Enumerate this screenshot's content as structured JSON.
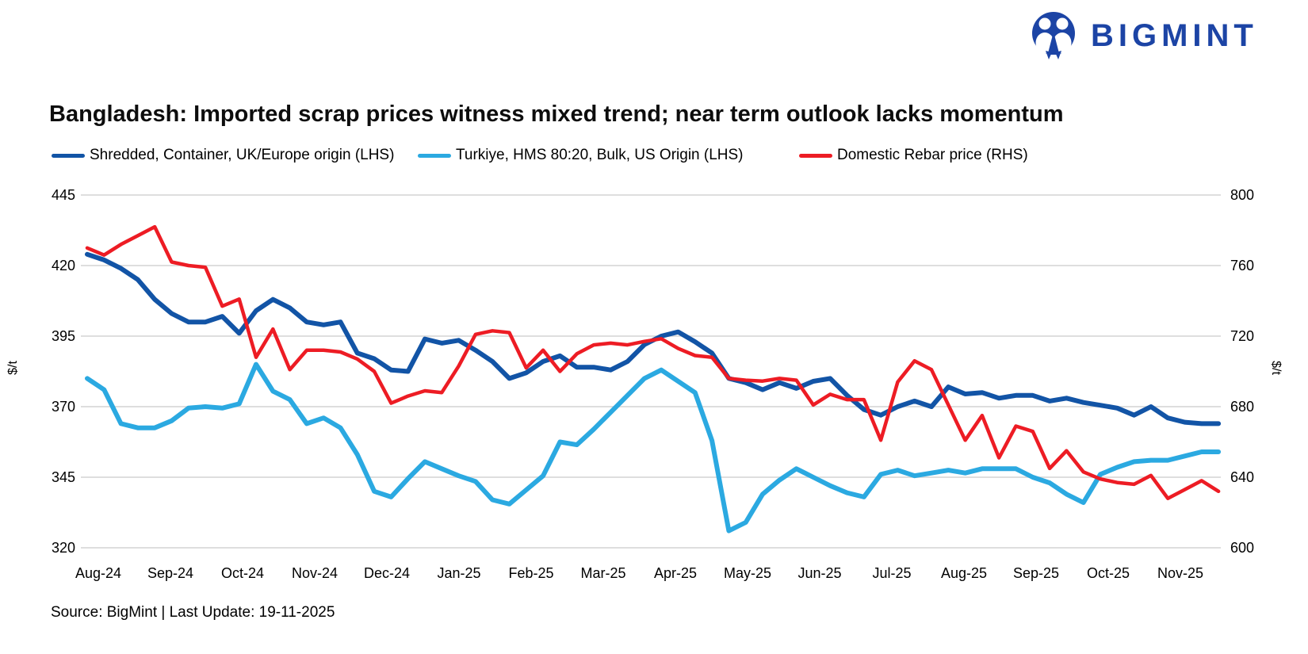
{
  "logo": {
    "text": "BIGMINT",
    "color": "#1c44a5"
  },
  "title": "Bangladesh: Imported scrap prices witness mixed trend; near term outlook lacks momentum",
  "legend": [
    {
      "label": "Shredded, Container, UK/Europe origin (LHS)",
      "color": "#1254a6"
    },
    {
      "label": "Turkiye, HMS 80:20, Bulk, US Origin (LHS)",
      "color": "#2ba9e1"
    },
    {
      "label": "Domestic Rebar price (RHS)",
      "color": "#ed1c24"
    }
  ],
  "axes": {
    "left": {
      "label": "$/t",
      "ticks": [
        445,
        420,
        395,
        370,
        345,
        320
      ]
    },
    "right": {
      "label": "$/t",
      "ticks": [
        800,
        760,
        720,
        680,
        640,
        600
      ]
    },
    "x": {
      "labels": [
        "Aug-24",
        "Sep-24",
        "Oct-24",
        "Nov-24",
        "Dec-24",
        "Jan-25",
        "Feb-25",
        "Mar-25",
        "Apr-25",
        "May-25",
        "Jun-25",
        "Jul-25",
        "Aug-25",
        "Sep-25",
        "Oct-25",
        "Nov-25"
      ]
    }
  },
  "source": "Source: BigMint | Last Update: 19-11-2025",
  "chart_data": {
    "type": "line",
    "frequency": "weekly",
    "categories": [
      "Aug-24",
      "Sep-24",
      "Oct-24",
      "Nov-24",
      "Dec-24",
      "Jan-25",
      "Feb-25",
      "Mar-25",
      "Apr-25",
      "May-25",
      "Jun-25",
      "Jul-25",
      "Aug-25",
      "Sep-25",
      "Oct-25",
      "Nov-25"
    ],
    "left_ylim": [
      320,
      445
    ],
    "right_ylim": [
      600,
      800
    ],
    "grid": true,
    "legend_position": "top",
    "series": [
      {
        "name": "Shredded, Container, UK/Europe origin (LHS)",
        "axis": "LHS",
        "color": "#1254a6",
        "values": [
          424,
          422,
          419,
          415,
          408,
          403,
          400,
          400,
          402,
          396,
          404,
          408,
          405,
          400,
          399,
          400,
          389,
          387,
          383,
          382.5,
          394,
          392.5,
          393.5,
          390,
          386,
          380,
          382,
          386,
          388,
          384,
          384,
          383,
          386,
          392,
          395,
          396.5,
          393,
          389,
          380,
          378.5,
          376,
          378.5,
          376.5,
          379,
          380,
          374,
          369,
          367,
          370,
          372,
          370,
          377,
          374.5,
          375,
          373,
          374,
          374,
          372,
          373,
          371.5,
          370.5,
          369.5,
          367,
          370,
          366,
          364.5,
          364,
          364
        ]
      },
      {
        "name": "Turkiye, HMS 80:20, Bulk, US Origin (LHS)",
        "axis": "LHS",
        "color": "#2ba9e1",
        "values": [
          380,
          376,
          364,
          362.5,
          362.5,
          365,
          369.5,
          370,
          369.5,
          371,
          385,
          375.5,
          372.5,
          364,
          366,
          362.5,
          353,
          340,
          338,
          344.5,
          350.5,
          348,
          345.5,
          343.5,
          337,
          335.5,
          340.5,
          345.5,
          357.5,
          356.5,
          362,
          368,
          374,
          380,
          383,
          379,
          375,
          358,
          326,
          329,
          339,
          344,
          348,
          345,
          342,
          339.5,
          338,
          346,
          347.5,
          345.5,
          346.5,
          347.5,
          346.5,
          348,
          348,
          348,
          345,
          343,
          339,
          336,
          346,
          348.5,
          350.5,
          351,
          351,
          352.5,
          354,
          354
        ]
      },
      {
        "name": "Domestic Rebar price (RHS)",
        "axis": "RHS",
        "color": "#ed1c24",
        "values": [
          770,
          766,
          772,
          777,
          782,
          762,
          760,
          759,
          737,
          741,
          708,
          724,
          701,
          712,
          712,
          711,
          707,
          700,
          682,
          686,
          689,
          688,
          703,
          721,
          723,
          722,
          702,
          712,
          700,
          710,
          715,
          716,
          715,
          717,
          718.5,
          713,
          709,
          708,
          696,
          695,
          694.5,
          696,
          695,
          681,
          687,
          684,
          684,
          661,
          694,
          706,
          701,
          681,
          661,
          675,
          651,
          669,
          666,
          645,
          655,
          643,
          639,
          637,
          636,
          641,
          628,
          633,
          638,
          632
        ]
      }
    ]
  }
}
